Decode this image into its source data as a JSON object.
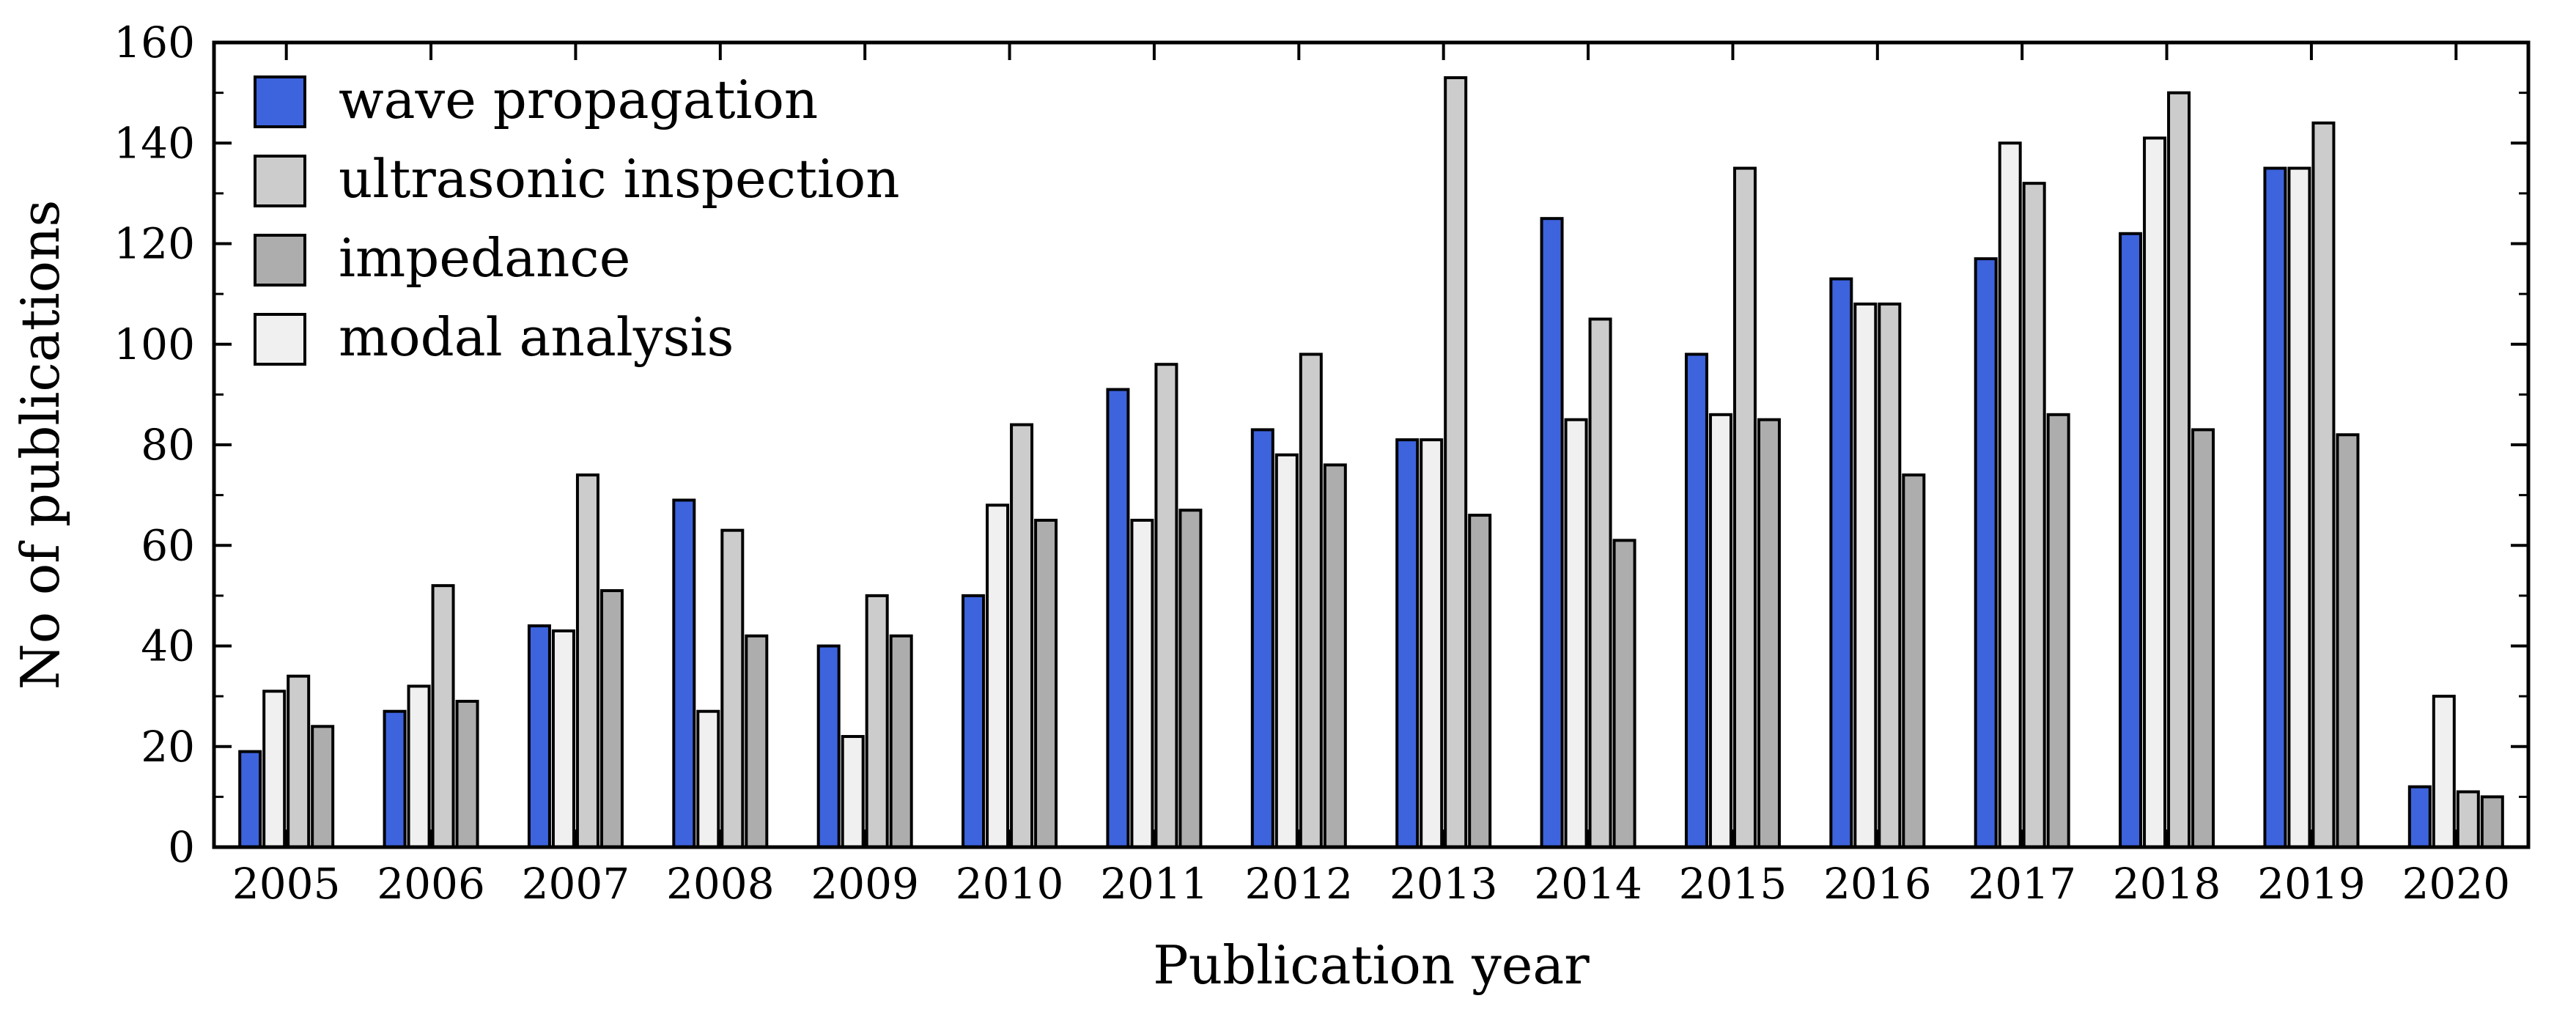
{
  "chart_data": {
    "type": "bar",
    "xlabel": "Publication year",
    "ylabel": "No of publications",
    "ylim": [
      0,
      160
    ],
    "yticks": [
      0,
      20,
      40,
      60,
      80,
      100,
      120,
      140,
      160
    ],
    "categories": [
      "2005",
      "2006",
      "2007",
      "2008",
      "2009",
      "2010",
      "2011",
      "2012",
      "2013",
      "2014",
      "2015",
      "2016",
      "2017",
      "2018",
      "2019",
      "2020"
    ],
    "series": [
      {
        "name": "wave propagation",
        "color": "#3d63dd",
        "values": [
          19,
          27,
          44,
          69,
          40,
          50,
          91,
          83,
          81,
          125,
          98,
          113,
          117,
          122,
          135,
          12
        ]
      },
      {
        "name": "modal analysis",
        "color": "#f0f0f0",
        "values": [
          31,
          32,
          43,
          27,
          22,
          68,
          65,
          78,
          81,
          85,
          86,
          108,
          140,
          141,
          135,
          30
        ]
      },
      {
        "name": "ultrasonic inspection",
        "color": "#cccccc",
        "values": [
          34,
          52,
          74,
          63,
          50,
          84,
          96,
          98,
          153,
          105,
          135,
          108,
          132,
          150,
          144,
          11
        ]
      },
      {
        "name": "impedance",
        "color": "#adadad",
        "values": [
          24,
          29,
          51,
          42,
          42,
          65,
          67,
          76,
          66,
          61,
          85,
          74,
          86,
          83,
          82,
          10
        ]
      }
    ],
    "legend": {
      "position": "top-left",
      "order": [
        "wave propagation",
        "ultrasonic inspection",
        "impedance",
        "modal analysis"
      ]
    },
    "grid": false
  }
}
